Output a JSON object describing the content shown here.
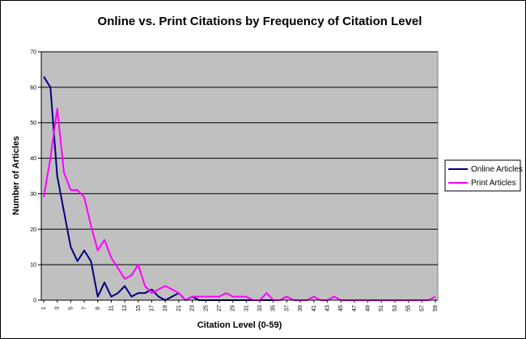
{
  "chart_data": {
    "type": "line",
    "title": "Online vs. Print Citations by Frequency of Citation Level",
    "xlabel": "Citation Level (0-59)",
    "ylabel": "Number of Articles",
    "xlim": [
      1,
      59
    ],
    "ylim": [
      0,
      70
    ],
    "y_ticks": [
      0,
      10,
      20,
      30,
      40,
      50,
      60,
      70
    ],
    "x_ticks": [
      1,
      3,
      5,
      7,
      9,
      11,
      13,
      15,
      17,
      19,
      21,
      23,
      25,
      27,
      29,
      31,
      33,
      35,
      37,
      39,
      41,
      43,
      45,
      47,
      49,
      51,
      53,
      55,
      57,
      59
    ],
    "grid": "horizontal",
    "plot_background": "#c0c0c0",
    "legend_position": "right",
    "series": [
      {
        "name": "Online Articles",
        "color": "#000080",
        "x": [
          1,
          2,
          3,
          4,
          5,
          6,
          7,
          8,
          9,
          10,
          11,
          12,
          13,
          14,
          15,
          16,
          17,
          18,
          19,
          20,
          21,
          22,
          23,
          24,
          25,
          26,
          27,
          28,
          29,
          30,
          31,
          32,
          33,
          34,
          35,
          36,
          37
        ],
        "values": [
          63,
          60,
          35,
          25,
          15,
          11,
          14,
          11,
          1,
          5,
          1,
          2,
          4,
          1,
          2,
          2,
          3,
          1,
          0,
          1,
          2,
          0,
          1,
          0,
          0,
          0,
          0,
          0,
          0,
          0,
          0,
          0,
          0,
          0,
          0,
          0,
          1
        ]
      },
      {
        "name": "Print Articles",
        "color": "#ff00ff",
        "x": [
          1,
          2,
          3,
          4,
          5,
          6,
          7,
          8,
          9,
          10,
          11,
          12,
          13,
          14,
          15,
          16,
          17,
          18,
          19,
          20,
          21,
          22,
          23,
          24,
          25,
          26,
          27,
          28,
          29,
          30,
          31,
          32,
          33,
          34,
          35,
          36,
          37,
          38,
          39,
          40,
          41,
          42,
          43,
          44,
          45,
          46,
          47,
          48,
          49,
          50,
          51,
          52,
          53,
          54,
          55,
          56,
          57,
          58,
          59
        ],
        "values": [
          29,
          40,
          54,
          36,
          31,
          31,
          29,
          21,
          14,
          17,
          12,
          9,
          6,
          7,
          10,
          4,
          2,
          3,
          4,
          3,
          2,
          0,
          1,
          1,
          1,
          1,
          1,
          2,
          1,
          1,
          1,
          0,
          0,
          2,
          0,
          0,
          1,
          0,
          0,
          0,
          1,
          0,
          0,
          1,
          0,
          0,
          0,
          0,
          0,
          0,
          0,
          0,
          0,
          0,
          0,
          0,
          0,
          0,
          1
        ]
      }
    ]
  }
}
